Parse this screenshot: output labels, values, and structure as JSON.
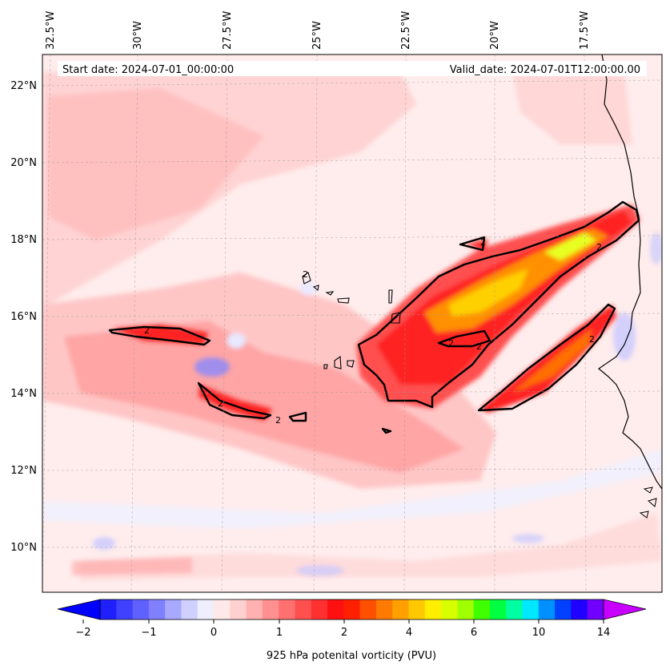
{
  "map": {
    "start_date": "Start date: 2024-07-01_00:00:00",
    "valid_date": "Valid_date: 2024-07-01T12:00:00.00",
    "lon_labels": [
      "32.5°W",
      "30°W",
      "27.5°W",
      "25°W",
      "22.5°W",
      "20°W",
      "17.5°W"
    ],
    "lat_labels": [
      "22°N",
      "20°N",
      "18°N",
      "16°N",
      "14°N",
      "12°N",
      "10°N"
    ],
    "contour_label": "2",
    "colorbar": {
      "title": "925 hPa potenital vorticity (PVU)",
      "ticks": [
        "−2",
        "−1",
        "0",
        "1",
        "2",
        "4",
        "6",
        "10",
        "14"
      ]
    },
    "colors": {
      "neg_deep": "#0000ff",
      "neg_light": "#e8e8ff",
      "pos_light": "#ffe0e0",
      "pos_mid": "#ff7070",
      "pos_high": "#ff1010",
      "peak": "#ffe000"
    }
  }
}
